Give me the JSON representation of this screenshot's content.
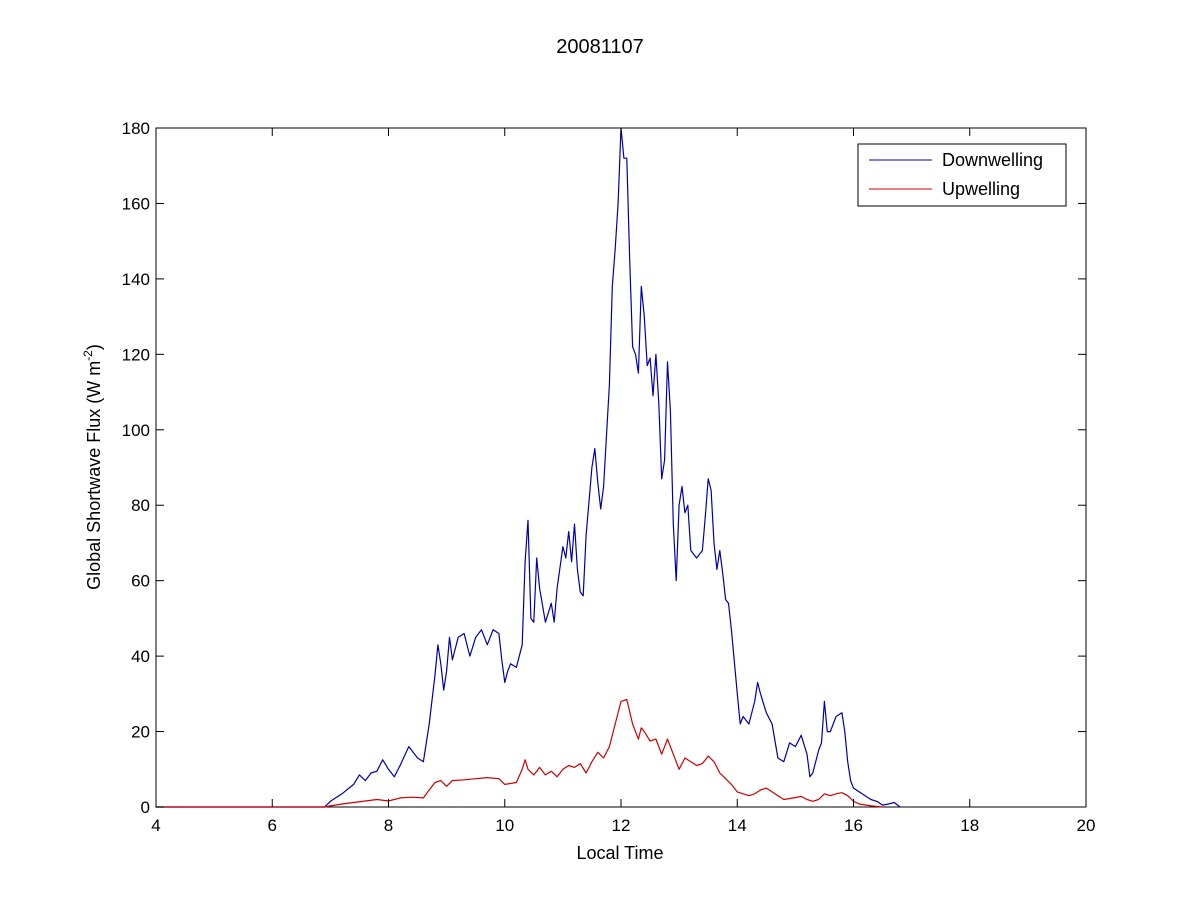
{
  "chart_data": {
    "type": "line",
    "title": "20081107",
    "xlabel": "Local Time",
    "ylabel_text": "Global Shortwave Flux (W m",
    "ylabel_sup": "-2",
    "ylabel_close": ")",
    "xlim": [
      4,
      20
    ],
    "ylim": [
      0,
      180
    ],
    "xticks": [
      4,
      6,
      8,
      10,
      12,
      14,
      16,
      18,
      20
    ],
    "yticks": [
      0,
      20,
      40,
      60,
      80,
      100,
      120,
      140,
      160,
      180
    ],
    "grid": false,
    "legend_position": "top-right",
    "series": [
      {
        "name": "Downwelling",
        "color": "#0000aa",
        "points": [
          [
            4.0,
            0.0
          ],
          [
            6.9,
            0.0
          ],
          [
            7.0,
            1.5
          ],
          [
            7.2,
            3.5
          ],
          [
            7.4,
            6
          ],
          [
            7.5,
            8.5
          ],
          [
            7.6,
            7
          ],
          [
            7.7,
            9
          ],
          [
            7.8,
            9.5
          ],
          [
            7.9,
            12.5
          ],
          [
            8.0,
            10
          ],
          [
            8.1,
            8
          ],
          [
            8.2,
            11
          ],
          [
            8.35,
            16
          ],
          [
            8.5,
            13
          ],
          [
            8.6,
            12
          ],
          [
            8.7,
            22
          ],
          [
            8.8,
            35
          ],
          [
            8.85,
            43
          ],
          [
            8.9,
            38
          ],
          [
            8.95,
            31
          ],
          [
            9.0,
            36
          ],
          [
            9.05,
            45
          ],
          [
            9.1,
            39
          ],
          [
            9.2,
            45
          ],
          [
            9.3,
            46
          ],
          [
            9.4,
            40
          ],
          [
            9.5,
            45
          ],
          [
            9.6,
            47
          ],
          [
            9.7,
            43
          ],
          [
            9.8,
            47
          ],
          [
            9.9,
            46
          ],
          [
            9.95,
            39
          ],
          [
            10.0,
            33
          ],
          [
            10.05,
            36
          ],
          [
            10.1,
            38
          ],
          [
            10.2,
            37
          ],
          [
            10.3,
            43
          ],
          [
            10.35,
            65
          ],
          [
            10.4,
            76
          ],
          [
            10.45,
            50
          ],
          [
            10.5,
            49
          ],
          [
            10.55,
            66
          ],
          [
            10.6,
            58
          ],
          [
            10.7,
            49
          ],
          [
            10.8,
            54
          ],
          [
            10.85,
            49
          ],
          [
            10.9,
            58
          ],
          [
            11.0,
            69
          ],
          [
            11.05,
            66
          ],
          [
            11.1,
            73
          ],
          [
            11.15,
            65
          ],
          [
            11.2,
            75
          ],
          [
            11.25,
            63
          ],
          [
            11.3,
            57
          ],
          [
            11.35,
            56
          ],
          [
            11.4,
            72
          ],
          [
            11.5,
            90
          ],
          [
            11.55,
            95
          ],
          [
            11.6,
            86
          ],
          [
            11.65,
            79
          ],
          [
            11.7,
            85
          ],
          [
            11.8,
            112
          ],
          [
            11.85,
            138
          ],
          [
            11.9,
            148
          ],
          [
            11.95,
            160
          ],
          [
            12.0,
            180
          ],
          [
            12.05,
            172
          ],
          [
            12.1,
            172
          ],
          [
            12.15,
            145
          ],
          [
            12.2,
            122
          ],
          [
            12.25,
            120
          ],
          [
            12.3,
            115
          ],
          [
            12.35,
            138
          ],
          [
            12.4,
            130
          ],
          [
            12.45,
            117
          ],
          [
            12.5,
            119
          ],
          [
            12.55,
            109
          ],
          [
            12.6,
            120
          ],
          [
            12.65,
            107
          ],
          [
            12.7,
            87
          ],
          [
            12.75,
            92
          ],
          [
            12.8,
            118
          ],
          [
            12.85,
            105
          ],
          [
            12.9,
            75
          ],
          [
            12.95,
            60
          ],
          [
            13.0,
            80
          ],
          [
            13.05,
            85
          ],
          [
            13.1,
            78
          ],
          [
            13.15,
            80
          ],
          [
            13.2,
            68
          ],
          [
            13.3,
            66
          ],
          [
            13.4,
            68
          ],
          [
            13.45,
            77
          ],
          [
            13.5,
            87
          ],
          [
            13.55,
            84
          ],
          [
            13.6,
            70
          ],
          [
            13.65,
            63
          ],
          [
            13.7,
            68
          ],
          [
            13.75,
            62
          ],
          [
            13.8,
            55
          ],
          [
            13.85,
            54
          ],
          [
            13.9,
            47
          ],
          [
            14.0,
            30
          ],
          [
            14.05,
            22
          ],
          [
            14.1,
            24
          ],
          [
            14.2,
            22
          ],
          [
            14.3,
            28
          ],
          [
            14.35,
            33
          ],
          [
            14.4,
            30
          ],
          [
            14.5,
            25
          ],
          [
            14.6,
            22
          ],
          [
            14.7,
            13
          ],
          [
            14.8,
            12
          ],
          [
            14.9,
            17
          ],
          [
            15.0,
            16
          ],
          [
            15.1,
            19
          ],
          [
            15.2,
            14
          ],
          [
            15.25,
            8
          ],
          [
            15.3,
            9
          ],
          [
            15.4,
            15
          ],
          [
            15.45,
            17
          ],
          [
            15.5,
            28
          ],
          [
            15.55,
            20
          ],
          [
            15.6,
            20
          ],
          [
            15.7,
            24
          ],
          [
            15.8,
            25
          ],
          [
            15.85,
            20
          ],
          [
            15.9,
            12
          ],
          [
            15.95,
            7
          ],
          [
            16.0,
            5
          ],
          [
            16.1,
            4
          ],
          [
            16.2,
            3
          ],
          [
            16.3,
            2
          ],
          [
            16.4,
            1.5
          ],
          [
            16.5,
            0.5
          ],
          [
            16.6,
            0.8
          ],
          [
            16.7,
            1.2
          ],
          [
            16.8,
            0
          ]
        ]
      },
      {
        "name": "Upwelling",
        "color": "#cc0000",
        "points": [
          [
            4.0,
            0.0
          ],
          [
            6.9,
            0.0
          ],
          [
            7.0,
            0.3
          ],
          [
            7.2,
            0.8
          ],
          [
            7.4,
            1.2
          ],
          [
            7.6,
            1.6
          ],
          [
            7.8,
            2.0
          ],
          [
            8.0,
            1.6
          ],
          [
            8.2,
            2.4
          ],
          [
            8.4,
            2.6
          ],
          [
            8.6,
            2.4
          ],
          [
            8.7,
            4.5
          ],
          [
            8.8,
            6.5
          ],
          [
            8.9,
            7.0
          ],
          [
            9.0,
            5.5
          ],
          [
            9.1,
            7.0
          ],
          [
            9.3,
            7.2
          ],
          [
            9.5,
            7.5
          ],
          [
            9.7,
            7.8
          ],
          [
            9.9,
            7.5
          ],
          [
            10.0,
            6.0
          ],
          [
            10.2,
            6.5
          ],
          [
            10.3,
            10.0
          ],
          [
            10.35,
            12.5
          ],
          [
            10.4,
            10.0
          ],
          [
            10.5,
            8.5
          ],
          [
            10.6,
            10.5
          ],
          [
            10.7,
            8.5
          ],
          [
            10.8,
            9.5
          ],
          [
            10.9,
            8.0
          ],
          [
            11.0,
            10.0
          ],
          [
            11.1,
            11.0
          ],
          [
            11.2,
            10.5
          ],
          [
            11.3,
            11.5
          ],
          [
            11.4,
            9.0
          ],
          [
            11.5,
            12.0
          ],
          [
            11.6,
            14.5
          ],
          [
            11.7,
            13.0
          ],
          [
            11.8,
            16.0
          ],
          [
            11.9,
            22.0
          ],
          [
            12.0,
            28.0
          ],
          [
            12.1,
            28.5
          ],
          [
            12.2,
            22.0
          ],
          [
            12.3,
            18.0
          ],
          [
            12.35,
            21.0
          ],
          [
            12.4,
            20.0
          ],
          [
            12.5,
            17.5
          ],
          [
            12.6,
            18.0
          ],
          [
            12.7,
            14.0
          ],
          [
            12.8,
            18.0
          ],
          [
            12.9,
            14.0
          ],
          [
            13.0,
            10.0
          ],
          [
            13.1,
            13.0
          ],
          [
            13.2,
            12.0
          ],
          [
            13.3,
            11.0
          ],
          [
            13.4,
            11.5
          ],
          [
            13.5,
            13.5
          ],
          [
            13.6,
            12.0
          ],
          [
            13.7,
            9.0
          ],
          [
            13.8,
            7.5
          ],
          [
            13.9,
            6.0
          ],
          [
            14.0,
            4.0
          ],
          [
            14.1,
            3.5
          ],
          [
            14.2,
            3.0
          ],
          [
            14.3,
            3.5
          ],
          [
            14.4,
            4.5
          ],
          [
            14.5,
            5.0
          ],
          [
            14.6,
            4.0
          ],
          [
            14.7,
            3.0
          ],
          [
            14.8,
            2.0
          ],
          [
            15.0,
            2.5
          ],
          [
            15.1,
            2.8
          ],
          [
            15.2,
            2.0
          ],
          [
            15.3,
            1.5
          ],
          [
            15.4,
            2.0
          ],
          [
            15.5,
            3.5
          ],
          [
            15.6,
            3.0
          ],
          [
            15.7,
            3.5
          ],
          [
            15.8,
            3.8
          ],
          [
            15.9,
            3.0
          ],
          [
            16.0,
            1.5
          ],
          [
            16.1,
            0.8
          ],
          [
            16.3,
            0.3
          ],
          [
            16.5,
            0
          ]
        ]
      }
    ]
  }
}
